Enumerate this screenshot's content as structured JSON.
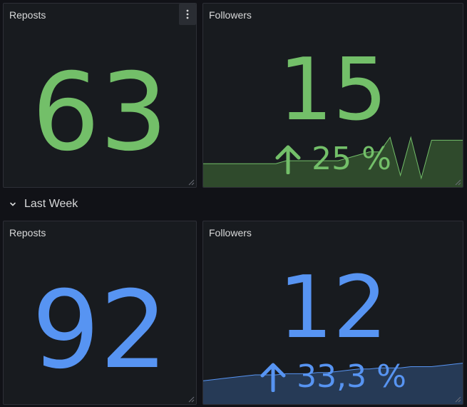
{
  "colors": {
    "green": "#73bf69",
    "blue": "#5794f2",
    "green_fill": "#2f4a2c",
    "blue_fill": "#263a56",
    "background": "#111217",
    "panel": "#181b1f",
    "title_text": "#d8d9da"
  },
  "top_row": {
    "reposts": {
      "title": "Reposts",
      "value": "63",
      "menu_icon": "vertical-dots-icon"
    },
    "followers": {
      "title": "Followers",
      "value": "15",
      "trend_icon": "arrow-up-icon",
      "trend": "25 %",
      "sparkline": [
        0.4,
        0.4,
        0.4,
        0.4,
        0.4,
        0.4,
        0.4,
        0.4,
        0.45,
        0.45,
        0.45,
        0.45,
        0.45,
        0.45,
        0.5,
        0.55,
        0.6,
        0.6,
        0.85,
        0.2,
        0.85,
        0.15,
        0.8,
        0.8,
        0.8,
        0.8
      ]
    }
  },
  "row_header": {
    "title": "Last Week",
    "icon": "chevron-down-icon"
  },
  "bottom_row": {
    "reposts": {
      "title": "Reposts",
      "value": "92"
    },
    "followers": {
      "title": "Followers",
      "value": "12",
      "trend_icon": "arrow-up-icon",
      "trend": "33,3 %",
      "sparkline": [
        0.4,
        0.42,
        0.44,
        0.46,
        0.48,
        0.5,
        0.5,
        0.5,
        0.52,
        0.52,
        0.52,
        0.54,
        0.54,
        0.56,
        0.58,
        0.6,
        0.6,
        0.62,
        0.62,
        0.62,
        0.64,
        0.64,
        0.64,
        0.66,
        0.68,
        0.7
      ]
    }
  }
}
